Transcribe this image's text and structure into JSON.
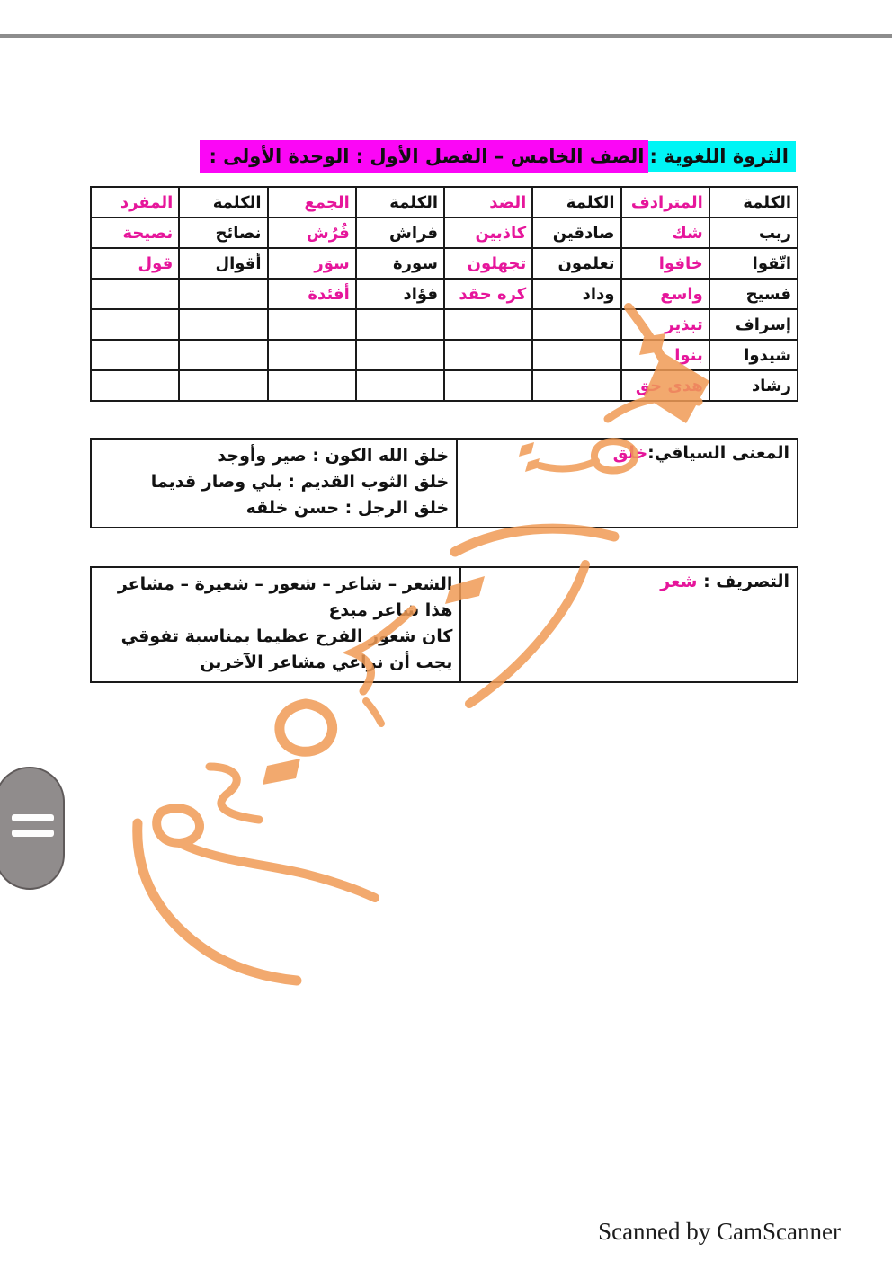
{
  "title": {
    "subject": "الثروة اللغوية :",
    "grade_unit": "الصف الخامس – الفصل الأول : الوحدة الأولى :"
  },
  "vocab_table": {
    "headers": [
      "الكلمة",
      "المترادف",
      "الكلمة",
      "الضد",
      "الكلمة",
      "الجمع",
      "الكلمة",
      "المفرد"
    ],
    "rows": [
      [
        "ريب",
        "شك",
        "صادقين",
        "كاذبين",
        "فراش",
        "فُرُش",
        "نصائح",
        "نصيحة"
      ],
      [
        "اتّقوا",
        "خافوا",
        "تعلمون",
        "تجهلون",
        "سورة",
        "سوَر",
        "أقوال",
        "قول"
      ],
      [
        "فسيح",
        "واسع",
        "وداد",
        "كره حقد",
        "فؤاد",
        "أفئدة",
        "",
        ""
      ],
      [
        "إسراف",
        "تبذير",
        "",
        "",
        "",
        "",
        "",
        ""
      ],
      [
        "شيدوا",
        "بنوا",
        "",
        "",
        "",
        "",
        "",
        ""
      ],
      [
        "رشاد",
        "هدى حق",
        "",
        "",
        "",
        "",
        "",
        ""
      ]
    ]
  },
  "context_table": {
    "label": "المعنى السياقي:",
    "word": "خلق",
    "examples": [
      "خلق الله الكون : صير وأوجد",
      "خلق الثوب القديم : بلي وصار قديما",
      "خلق الرجل : حسن خلقه"
    ]
  },
  "conjugation_table": {
    "label": "التصريف : ",
    "word": "شعر",
    "examples": [
      "الشعر – شاعر – شعور – شعيرة – مشاعر",
      "هذا شاعر مبدع",
      "كان شعور الفرح عظيما بمناسبة تفوقي",
      "يجب أن نراعي مشاعر الآخرين"
    ]
  },
  "footer": {
    "credit": "Scanned by CamScanner"
  },
  "colors": {
    "highlight_cyan": "#00f5f5",
    "highlight_magenta": "#fb06f6",
    "accent_magenta": "#e6169b",
    "watermark_orange": "#f09b55",
    "rule_gray": "#8d8d8d"
  }
}
